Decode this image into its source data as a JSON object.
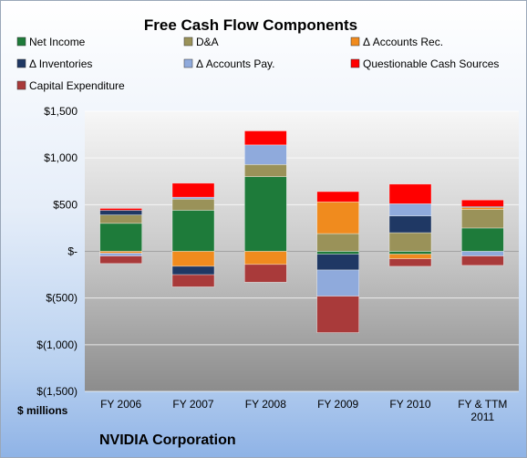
{
  "chart_data": {
    "type": "bar",
    "stacked": true,
    "title": "Free Cash Flow Components",
    "ylabel": "$ millions",
    "company": "NVIDIA Corporation",
    "ylim": [
      -1500,
      1500
    ],
    "yticks": [
      1500,
      1000,
      500,
      0,
      -500,
      -1000,
      -1500
    ],
    "ytick_labels": [
      "$1,500",
      "$1,000",
      "$500",
      "$-",
      "$(500)",
      "$(1,000)",
      "$(1,500)"
    ],
    "categories": [
      [
        "FY 2006"
      ],
      [
        "FY 2007"
      ],
      [
        "FY 2008"
      ],
      [
        "FY 2009"
      ],
      [
        "FY 2010"
      ],
      [
        "FY & TTM",
        "2011"
      ]
    ],
    "grid": true,
    "legend_position": "top",
    "series": [
      {
        "name": "Net Income",
        "color": "#1e7b3a",
        "values": [
          300,
          440,
          800,
          -30,
          -30,
          250
        ]
      },
      {
        "name": "D&A",
        "color": "#9a9259",
        "values": [
          90,
          120,
          130,
          190,
          200,
          200
        ]
      },
      {
        "name": "Δ Accounts Rec.",
        "color": "#f08b1e",
        "values": [
          -20,
          -160,
          -140,
          340,
          -50,
          20
        ]
      },
      {
        "name": "Δ Inventories",
        "color": "#1f3864",
        "values": [
          50,
          -90,
          0,
          -170,
          180,
          10
        ]
      },
      {
        "name": "Δ Accounts Pay.",
        "color": "#8faadc",
        "values": [
          -30,
          20,
          210,
          -280,
          130,
          -50
        ]
      },
      {
        "name": "Questionable Cash Sources",
        "color": "#ff0000",
        "values": [
          20,
          150,
          150,
          110,
          210,
          70
        ]
      },
      {
        "name": "Capital Expenditure",
        "color": "#a93a3a",
        "values": [
          -80,
          -130,
          -190,
          -390,
          -80,
          -100
        ]
      }
    ]
  }
}
